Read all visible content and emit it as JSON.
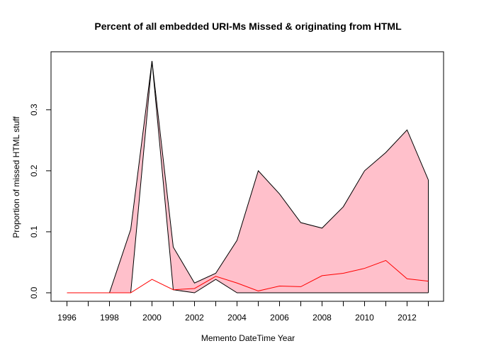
{
  "chart_data": {
    "type": "area",
    "title": "Percent of all embedded URI-Ms Missed & originating from HTML",
    "xlabel": "Memento DateTime Year",
    "ylabel": "Proportion of missed HTML stuff",
    "x": [
      1996,
      1997,
      1998,
      1999,
      2000,
      2001,
      2002,
      2003,
      2004,
      2005,
      2006,
      2007,
      2008,
      2009,
      2010,
      2011,
      2012,
      2013
    ],
    "xlim": [
      1996,
      2013
    ],
    "ylim": [
      0,
      0.38
    ],
    "x_tick_values": [
      1996,
      1997,
      1998,
      1999,
      2000,
      2001,
      2002,
      2003,
      2004,
      2005,
      2006,
      2007,
      2008,
      2009,
      2010,
      2011,
      2012,
      2013
    ],
    "x_tick_labels": [
      {
        "value": 1996,
        "label": "1996"
      },
      {
        "value": 1998,
        "label": "1998"
      },
      {
        "value": 2000,
        "label": "2000"
      },
      {
        "value": 2002,
        "label": "2002"
      },
      {
        "value": 2004,
        "label": "2004"
      },
      {
        "value": 2006,
        "label": "2006"
      },
      {
        "value": 2008,
        "label": "2008"
      },
      {
        "value": 2010,
        "label": "2010"
      },
      {
        "value": 2012,
        "label": "2012"
      }
    ],
    "y_ticks": [
      {
        "value": 0.0,
        "label": "0.0"
      },
      {
        "value": 0.1,
        "label": "0.1"
      },
      {
        "value": 0.2,
        "label": "0.2"
      },
      {
        "value": 0.3,
        "label": "0.3"
      }
    ],
    "grid": false,
    "legend": "none",
    "series": [
      {
        "values": [
          0,
          0,
          0,
          0,
          0.38,
          0.005,
          0,
          0.022,
          0,
          0,
          0,
          0,
          0,
          0,
          0,
          0,
          0,
          0
        ],
        "line_color": "#000000",
        "role": "lower-boundary"
      },
      {
        "values": [
          0,
          0,
          0,
          0.104,
          0.38,
          0.075,
          0.016,
          0.032,
          0.086,
          0.2,
          0.162,
          0.115,
          0.106,
          0.141,
          0.2,
          0.23,
          0.267,
          0.185
        ],
        "line_color": "#000000",
        "role": "upper-boundary"
      },
      {
        "values": [
          0,
          0,
          0,
          0,
          0.022,
          0.005,
          0.007,
          0.027,
          0.016,
          0.003,
          0.011,
          0.01,
          0.028,
          0.032,
          0.04,
          0.053,
          0.023,
          0.019
        ],
        "line_color": "#ff0000",
        "role": "line"
      }
    ],
    "fill_color": "#ffc0cb",
    "axis_color": "#000000"
  }
}
